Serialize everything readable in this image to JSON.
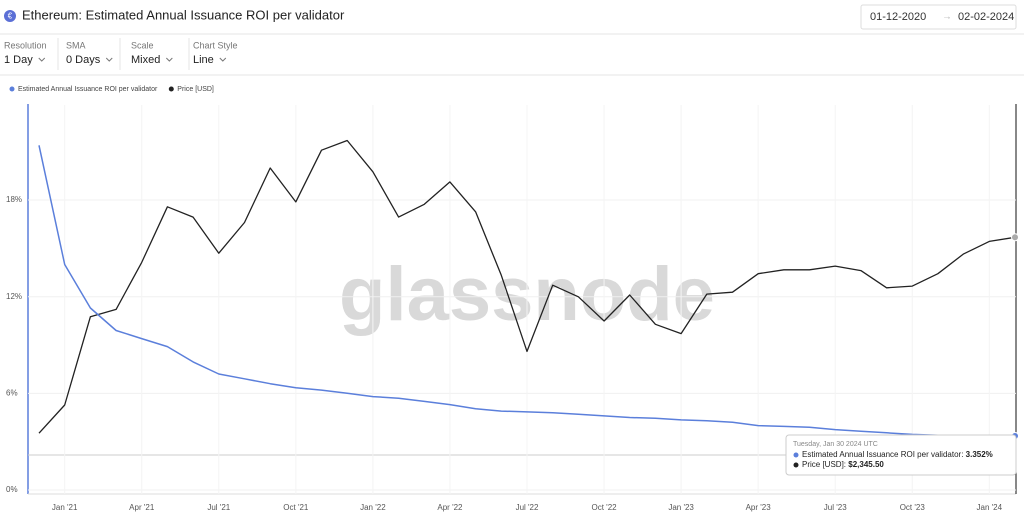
{
  "header": {
    "title": "Ethereum: Estimated Annual Issuance ROI per validator",
    "date_from": "01-12-2020",
    "date_to": "02-02-2024"
  },
  "controls": [
    {
      "label": "Resolution",
      "value": "1 Day"
    },
    {
      "label": "SMA",
      "value": "0 Days"
    },
    {
      "label": "Scale",
      "value": "Mixed"
    },
    {
      "label": "Chart Style",
      "value": "Line"
    }
  ],
  "watermark": "glassnode",
  "chart_data": {
    "type": "line",
    "x": [
      "2020-12",
      "2021-01",
      "2021-02",
      "2021-03",
      "2021-04",
      "2021-05",
      "2021-06",
      "2021-07",
      "2021-08",
      "2021-09",
      "2021-10",
      "2021-11",
      "2021-12",
      "2022-01",
      "2022-02",
      "2022-03",
      "2022-04",
      "2022-05",
      "2022-06",
      "2022-07",
      "2022-08",
      "2022-09",
      "2022-10",
      "2022-11",
      "2022-12",
      "2023-01",
      "2023-02",
      "2023-03",
      "2023-04",
      "2023-05",
      "2023-06",
      "2023-07",
      "2023-08",
      "2023-09",
      "2023-10",
      "2023-11",
      "2023-12",
      "2024-01",
      "2024-02"
    ],
    "xlim": [
      "2020-12",
      "2024-02"
    ],
    "xticks": [
      {
        "value": "2021-01",
        "label": "Jan '21"
      },
      {
        "value": "2021-04",
        "label": "Apr '21"
      },
      {
        "value": "2021-07",
        "label": "Jul '21"
      },
      {
        "value": "2021-10",
        "label": "Oct '21"
      },
      {
        "value": "2022-01",
        "label": "Jan '22"
      },
      {
        "value": "2022-04",
        "label": "Apr '22"
      },
      {
        "value": "2022-07",
        "label": "Jul '22"
      },
      {
        "value": "2022-10",
        "label": "Oct '22"
      },
      {
        "value": "2023-01",
        "label": "Jan '23"
      },
      {
        "value": "2023-04",
        "label": "Apr '23"
      },
      {
        "value": "2023-07",
        "label": "Jul '23"
      },
      {
        "value": "2023-10",
        "label": "Oct '23"
      },
      {
        "value": "2024-01",
        "label": "Jan '24"
      }
    ],
    "ylim": [
      0,
      23.9
    ],
    "yticks": [
      {
        "value": 0,
        "label": "0%"
      },
      {
        "value": 6,
        "label": "6%"
      },
      {
        "value": 12,
        "label": "12%"
      },
      {
        "value": 18,
        "label": "18%"
      }
    ],
    "y2lim": [
      404,
      5890
    ],
    "y2scale": "log",
    "grid": true,
    "series": [
      {
        "name": "Estimated Annual Issuance ROI per validator",
        "color": "#5b7fdb",
        "values": [
          21.4,
          14.0,
          11.3,
          9.9,
          9.4,
          8.9,
          7.95,
          7.2,
          6.9,
          6.6,
          6.35,
          6.2,
          6.0,
          5.8,
          5.7,
          5.5,
          5.3,
          5.05,
          4.9,
          4.85,
          4.8,
          4.7,
          4.6,
          4.5,
          4.45,
          4.35,
          4.3,
          4.2,
          4.0,
          3.95,
          3.9,
          3.75,
          3.65,
          3.55,
          3.45,
          3.4,
          3.38,
          3.36,
          3.352
        ]
      },
      {
        "name": "Price [USD]",
        "color": "#222222",
        "axis": "y2",
        "values": [
          600,
          730,
          1350,
          1420,
          1970,
          2900,
          2700,
          2100,
          2600,
          3800,
          3000,
          4300,
          4600,
          3700,
          2700,
          2950,
          3450,
          2800,
          1800,
          1060,
          1680,
          1550,
          1310,
          1570,
          1280,
          1200,
          1580,
          1600,
          1820,
          1870,
          1870,
          1920,
          1860,
          1650,
          1670,
          1820,
          2090,
          2280,
          2345.5
        ]
      }
    ]
  },
  "tooltip": {
    "date": "Tuesday, Jan 30 2024 UTC",
    "items": [
      {
        "label": "Estimated Annual Issuance ROI per validator:",
        "value": "3.352%"
      },
      {
        "label": "Price [USD]:",
        "value": "$2,345.50"
      }
    ]
  }
}
